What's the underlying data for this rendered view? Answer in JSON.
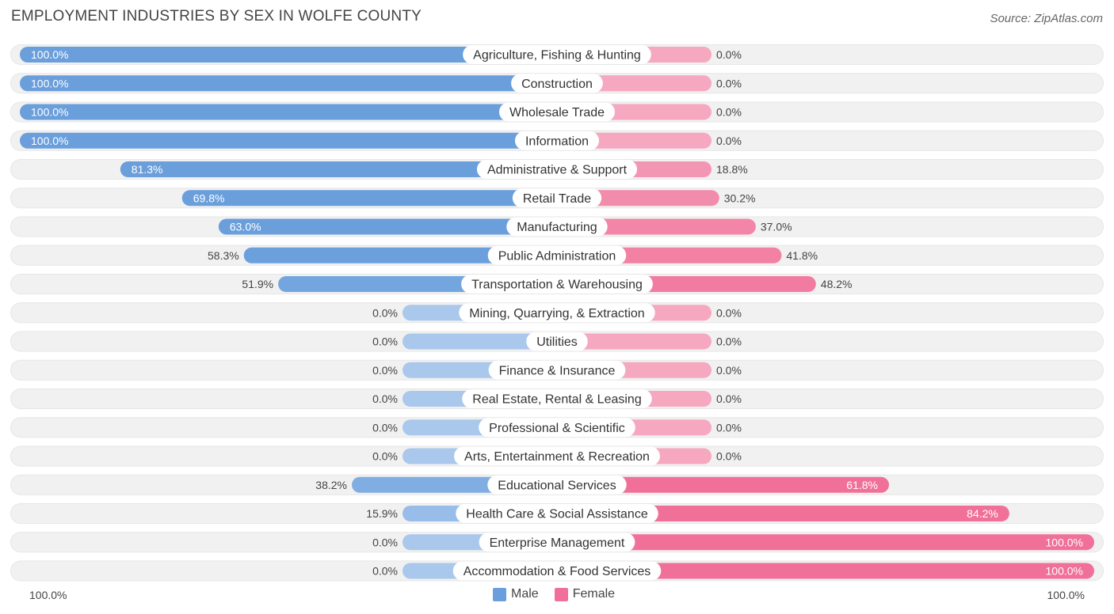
{
  "header": {
    "title": "EMPLOYMENT INDUSTRIES BY SEX IN WOLFE COUNTY",
    "source": "Source: ZipAtlas.com"
  },
  "colors": {
    "male": "#6a9fdc",
    "male_light": "#a9c8ec",
    "female": "#f07099",
    "female_light": "#f5a8c0",
    "track": "#f1f1f1"
  },
  "legend": {
    "male_label": "Male",
    "female_label": "Female"
  },
  "axis": {
    "left_label": "100.0%",
    "right_label": "100.0%"
  },
  "chart_data": {
    "type": "bar",
    "orientation": "horizontal-diverging",
    "title": "EMPLOYMENT INDUSTRIES BY SEX IN WOLFE COUNTY",
    "xlim": [
      -100,
      100
    ],
    "categories": [
      "Agriculture, Fishing & Hunting",
      "Construction",
      "Wholesale Trade",
      "Information",
      "Administrative & Support",
      "Retail Trade",
      "Manufacturing",
      "Public Administration",
      "Transportation & Warehousing",
      "Mining, Quarrying, & Extraction",
      "Utilities",
      "Finance & Insurance",
      "Real Estate, Rental & Leasing",
      "Professional & Scientific",
      "Arts, Entertainment & Recreation",
      "Educational Services",
      "Health Care & Social Assistance",
      "Enterprise Management",
      "Accommodation & Food Services"
    ],
    "series": [
      {
        "name": "Male",
        "values": [
          100.0,
          100.0,
          100.0,
          100.0,
          81.3,
          69.8,
          63.0,
          58.3,
          51.9,
          0.0,
          0.0,
          0.0,
          0.0,
          0.0,
          0.0,
          38.2,
          15.9,
          0.0,
          0.0
        ]
      },
      {
        "name": "Female",
        "values": [
          0.0,
          0.0,
          0.0,
          0.0,
          18.8,
          30.2,
          37.0,
          41.8,
          48.2,
          0.0,
          0.0,
          0.0,
          0.0,
          0.0,
          0.0,
          61.8,
          84.2,
          100.0,
          100.0
        ]
      }
    ],
    "value_labels": {
      "male": [
        "100.0%",
        "100.0%",
        "100.0%",
        "100.0%",
        "81.3%",
        "69.8%",
        "63.0%",
        "58.3%",
        "51.9%",
        "0.0%",
        "0.0%",
        "0.0%",
        "0.0%",
        "0.0%",
        "0.0%",
        "38.2%",
        "15.9%",
        "0.0%",
        "0.0%"
      ],
      "female": [
        "0.0%",
        "0.0%",
        "0.0%",
        "0.0%",
        "18.8%",
        "30.2%",
        "37.0%",
        "41.8%",
        "48.2%",
        "0.0%",
        "0.0%",
        "0.0%",
        "0.0%",
        "0.0%",
        "0.0%",
        "61.8%",
        "84.2%",
        "100.0%",
        "100.0%"
      ]
    },
    "legend_position": "bottom-center"
  }
}
